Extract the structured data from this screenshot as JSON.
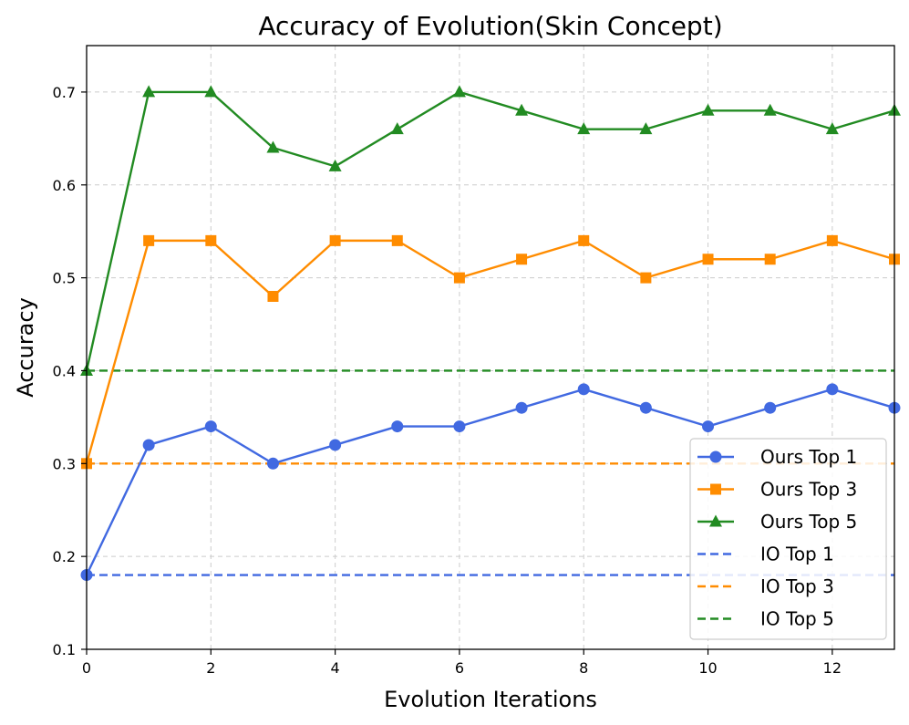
{
  "chart_data": {
    "type": "line",
    "title": "Accuracy of Evolution(Skin Concept)",
    "xlabel": "Evolution Iterations",
    "ylabel": "Accuracy",
    "xlim": [
      0,
      13
    ],
    "ylim": [
      0.1,
      0.75
    ],
    "xticks": [
      0,
      2,
      4,
      6,
      8,
      10,
      12
    ],
    "xtick_labels": [
      "0",
      "2",
      "4",
      "6",
      "8",
      "10",
      "12"
    ],
    "yticks": [
      0.1,
      0.2,
      0.3,
      0.4,
      0.5,
      0.6,
      0.7
    ],
    "ytick_labels": [
      "0.1",
      "0.2",
      "0.3",
      "0.4",
      "0.5",
      "0.6",
      "0.7"
    ],
    "grid": true,
    "legend_position": "lower-right",
    "x": [
      0,
      1,
      2,
      3,
      4,
      5,
      6,
      7,
      8,
      9,
      10,
      11,
      12,
      13
    ],
    "series": [
      {
        "name": "Ours Top 1",
        "color": "#4169e1",
        "marker": "circle",
        "style": "solid",
        "values": [
          0.18,
          0.32,
          0.34,
          0.3,
          0.32,
          0.34,
          0.34,
          0.36,
          0.38,
          0.36,
          0.34,
          0.36,
          0.38,
          0.36
        ]
      },
      {
        "name": "Ours Top 3",
        "color": "#ff8c00",
        "marker": "square",
        "style": "solid",
        "values": [
          0.3,
          0.54,
          0.54,
          0.48,
          0.54,
          0.54,
          0.5,
          0.52,
          0.54,
          0.5,
          0.52,
          0.52,
          0.54,
          0.52
        ]
      },
      {
        "name": "Ours Top 5",
        "color": "#228b22",
        "marker": "triangle",
        "style": "solid",
        "values": [
          0.4,
          0.7,
          0.7,
          0.64,
          0.62,
          0.66,
          0.7,
          0.68,
          0.66,
          0.66,
          0.68,
          0.68,
          0.66,
          0.68
        ]
      }
    ],
    "baselines": [
      {
        "name": "IO Top 1",
        "color": "#4169e1",
        "style": "dashed",
        "value": 0.18
      },
      {
        "name": "IO Top 3",
        "color": "#ff8c00",
        "style": "dashed",
        "value": 0.3
      },
      {
        "name": "IO Top 5",
        "color": "#228b22",
        "style": "dashed",
        "value": 0.4
      }
    ]
  }
}
